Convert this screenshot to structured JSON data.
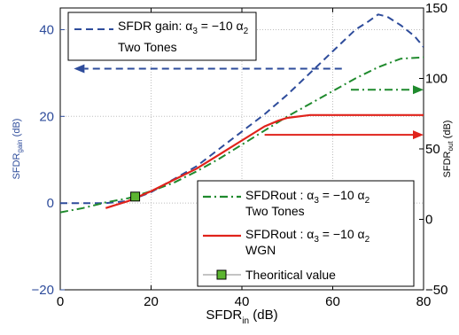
{
  "chart_data": {
    "type": "line",
    "xlabel": {
      "main": "SFDR",
      "sub": "in",
      "unit": " (dB)"
    },
    "ylabel_left": {
      "main": "SFDR",
      "sub": "gain",
      "unit": " (dB)"
    },
    "ylabel_right": {
      "main": "SFDR",
      "sub": "out",
      "unit": " (dB)"
    },
    "xlim": [
      0,
      80
    ],
    "ylim_left": [
      -20,
      45
    ],
    "ylim_right": [
      -50,
      150
    ],
    "xticks": [
      "0",
      "20",
      "40",
      "60",
      "80"
    ],
    "yticks_left": [
      "−20",
      "0",
      "20",
      "40"
    ],
    "yticks_right": [
      "−50",
      "0",
      "50",
      "100",
      "150"
    ],
    "grid": true,
    "colors": {
      "gain": "#2e4c9b",
      "two_tones": "#1f8a2d",
      "wgn": "#e0231b",
      "marker": "#5cb531",
      "right_axis": "#000000",
      "left_axis": "#2e4c9b"
    },
    "series": [
      {
        "name": "sfdr-gain-two-tones",
        "axis": "left",
        "style": "dashed",
        "x": [
          0,
          10,
          15,
          20,
          25,
          30,
          35,
          40,
          45,
          50,
          55,
          60,
          65,
          68,
          70,
          72,
          75,
          78,
          80
        ],
        "y": [
          0,
          0,
          0.5,
          2.5,
          5.5,
          8.5,
          12.5,
          16.5,
          20.5,
          25,
          30,
          35,
          40,
          42,
          43.5,
          43,
          41,
          38.5,
          36
        ]
      },
      {
        "name": "sfdr-out-two-tones",
        "axis": "right",
        "style": "dashdot",
        "x": [
          0,
          5,
          10,
          15,
          20,
          25,
          30,
          35,
          40,
          45,
          50,
          55,
          60,
          65,
          70,
          75,
          80
        ],
        "y": [
          5,
          8,
          12,
          15,
          20,
          26,
          34,
          43,
          53,
          63,
          73,
          82,
          91,
          100,
          108,
          114,
          115
        ]
      },
      {
        "name": "sfdr-out-wgn",
        "axis": "right",
        "style": "solid",
        "x": [
          10,
          15,
          20,
          25,
          30,
          35,
          40,
          45,
          48,
          50,
          55,
          60,
          65,
          70,
          75,
          80
        ],
        "y": [
          8,
          13,
          20,
          28,
          36,
          46,
          56,
          66,
          70,
          72,
          74,
          74,
          74,
          74,
          74,
          74
        ]
      }
    ],
    "theoretical_point": {
      "x": 16.5,
      "y_left": 1.5
    },
    "arrows": [
      {
        "name": "gain-arrow-left",
        "axis": "left",
        "color": "gain",
        "style": "dashed",
        "x_from": 62,
        "x_to": 3,
        "y": 31
      },
      {
        "name": "two-tones-arrow-right",
        "axis": "right",
        "color": "two_tones",
        "style": "dashdot",
        "x_from": 64,
        "x_to": 80,
        "y": 92
      },
      {
        "name": "wgn-arrow-right",
        "axis": "right",
        "color": "wgn",
        "style": "solid",
        "x_from": 45,
        "x_to": 80,
        "y": 60
      }
    ],
    "legend_top": {
      "line1": {
        "pre": "SFDR gain: α",
        "sub1": "3",
        "mid": " = −10 α",
        "sub2": "2"
      },
      "line2": "Two Tones"
    },
    "legend_bottom": [
      {
        "pre": "SFDRout   : α",
        "sub1": "3",
        "mid": " = −10 α",
        "sub2": "2",
        "line2": "Two Tones"
      },
      {
        "pre": "SFDRout   : α",
        "sub1": "3",
        "mid": " = −10 α",
        "sub2": "2",
        "line2": "WGN"
      },
      {
        "label": "Theoritical value"
      }
    ]
  }
}
